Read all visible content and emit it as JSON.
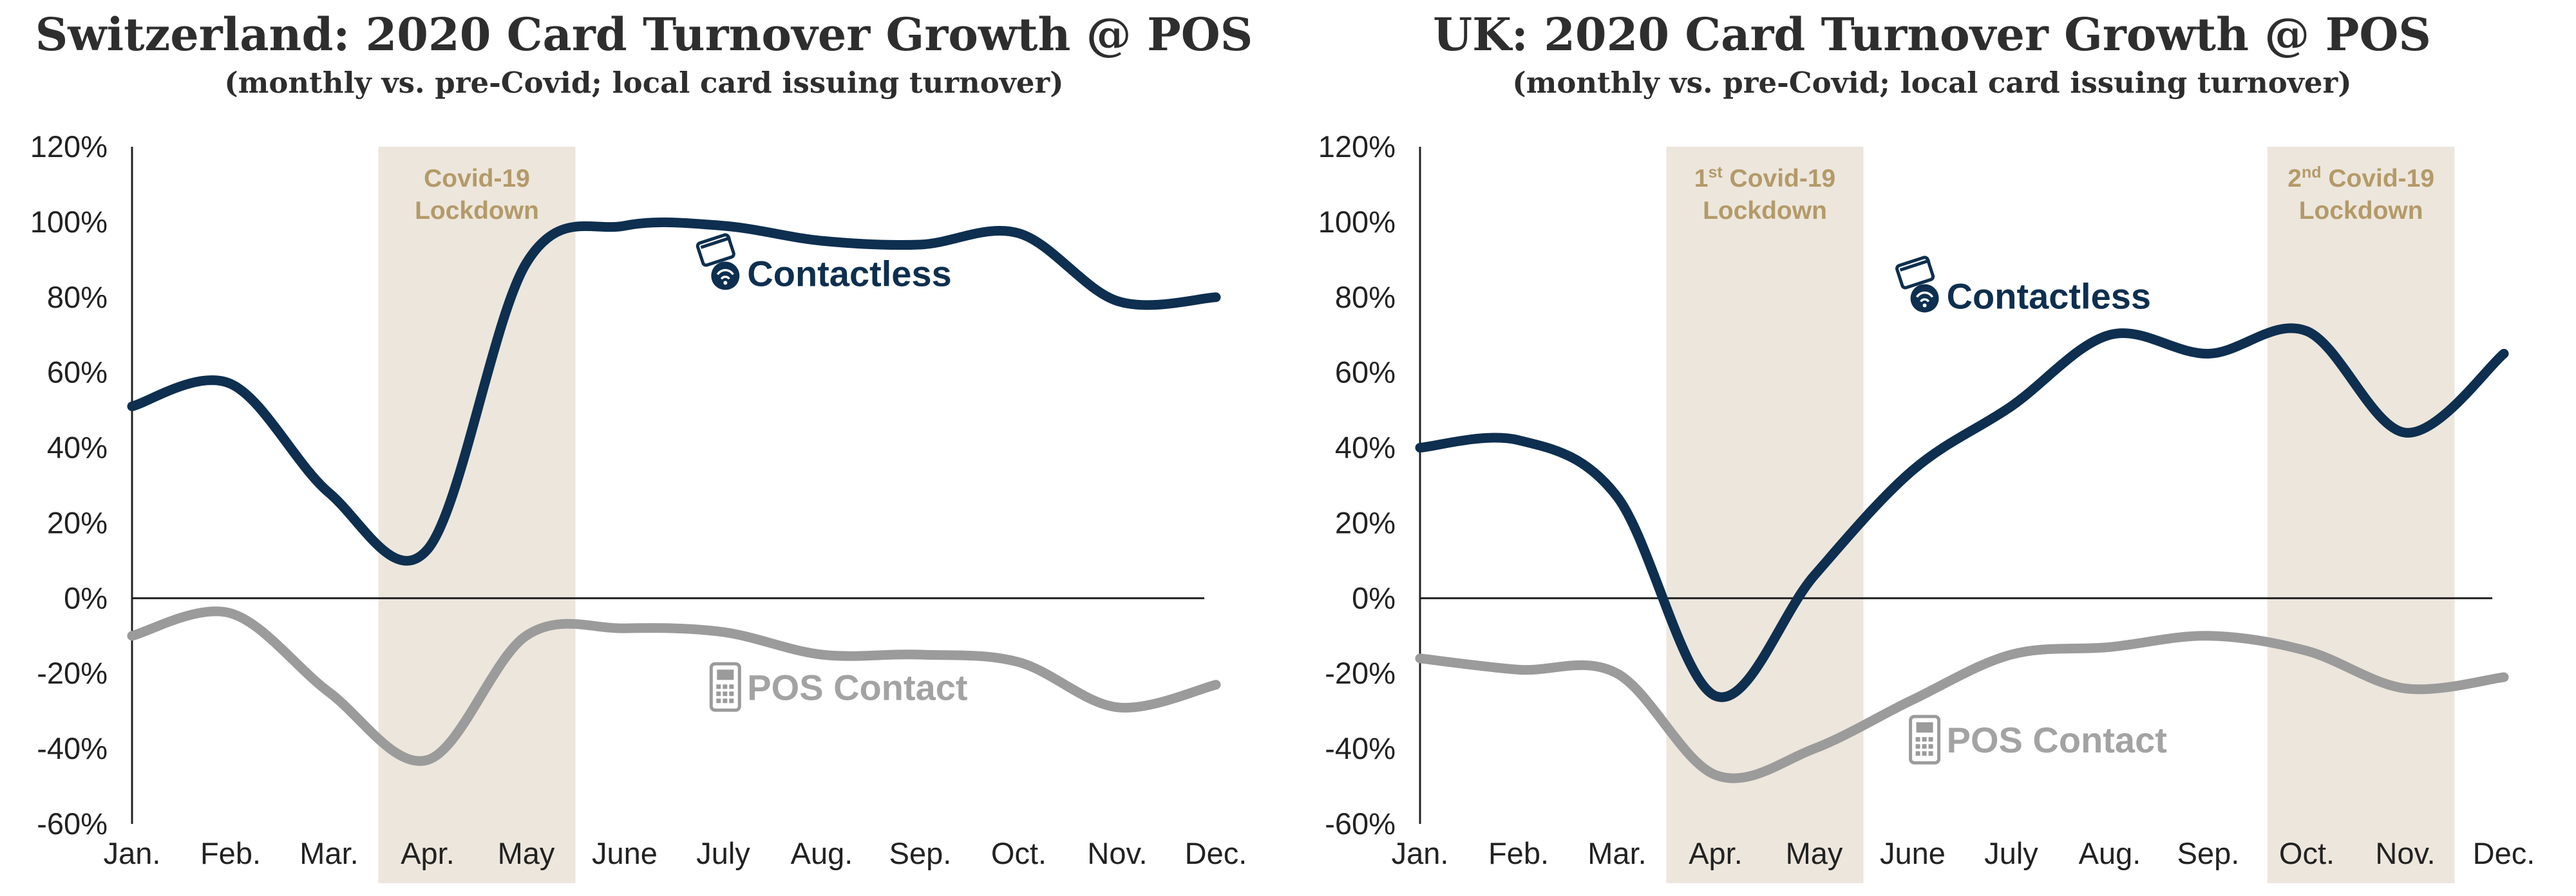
{
  "chart_data": [
    {
      "type": "line",
      "title": "Switzerland: 2020 Card Turnover Growth @ POS",
      "subtitle": "(monthly vs. pre-Covid; local card issuing turnover)",
      "categories": [
        "Jan.",
        "Feb.",
        "Mar.",
        "Apr.",
        "May",
        "June",
        "July",
        "Aug.",
        "Sep.",
        "Oct.",
        "Nov.",
        "Dec."
      ],
      "ylim": [
        -60,
        120
      ],
      "yticks": [
        "120%",
        "100%",
        "80%",
        "60%",
        "40%",
        "20%",
        "0%",
        "-20%",
        "-40%",
        "-60%"
      ],
      "grid": false,
      "bands": [
        {
          "from": 2.5,
          "to": 4.5,
          "label_line1": "Covid-19",
          "label_sup": "",
          "label_rest": "",
          "label_line2": "Lockdown"
        }
      ],
      "series": [
        {
          "name": "Contactless",
          "color": "#0e2f4f",
          "icon": "contactless-card-icon",
          "label_at": [
            6.1,
            84
          ],
          "values": [
            51,
            57,
            28,
            13,
            89,
            99,
            99,
            95,
            94,
            97,
            79,
            80
          ]
        },
        {
          "name": "POS Contact",
          "color": "#9b9b9b",
          "icon": "card-terminal-icon",
          "label_at": [
            6.1,
            -26
          ],
          "values": [
            -10,
            -4,
            -25,
            -43,
            -10,
            -8,
            -9,
            -15,
            -15,
            -17,
            -29,
            -23
          ]
        }
      ]
    },
    {
      "type": "line",
      "title": "UK: 2020 Card Turnover Growth @ POS",
      "subtitle": "(monthly vs. pre-Covid; local card issuing turnover)",
      "categories": [
        "Jan.",
        "Feb.",
        "Mar.",
        "Apr.",
        "May",
        "June",
        "July",
        "Aug.",
        "Sep.",
        "Oct.",
        "Nov.",
        "Dec."
      ],
      "ylim": [
        -60,
        120
      ],
      "yticks": [
        "120%",
        "100%",
        "80%",
        "60%",
        "40%",
        "20%",
        "0%",
        "-20%",
        "-40%",
        "-60%"
      ],
      "grid": false,
      "bands": [
        {
          "from": 2.5,
          "to": 4.5,
          "label_line1": "",
          "label_sup": "st",
          "label_num": "1",
          "label_rest": " Covid-19",
          "label_line2": "Lockdown"
        },
        {
          "from": 8.6,
          "to": 10.5,
          "label_line1": "",
          "label_sup": "nd",
          "label_num": "2",
          "label_rest": " Covid-19",
          "label_line2": "Lockdown"
        }
      ],
      "series": [
        {
          "name": "Contactless",
          "color": "#0e2f4f",
          "icon": "contactless-card-icon",
          "label_at": [
            5.2,
            78
          ],
          "values": [
            40,
            42,
            27,
            -26,
            6,
            34,
            51,
            70,
            65,
            71,
            44,
            65
          ]
        },
        {
          "name": "POS Contact",
          "color": "#9b9b9b",
          "icon": "card-terminal-icon",
          "label_at": [
            5.2,
            -40
          ],
          "values": [
            -16,
            -19,
            -20,
            -47,
            -40,
            -27,
            -15,
            -13,
            -10,
            -14,
            -24,
            -21
          ]
        }
      ]
    }
  ]
}
